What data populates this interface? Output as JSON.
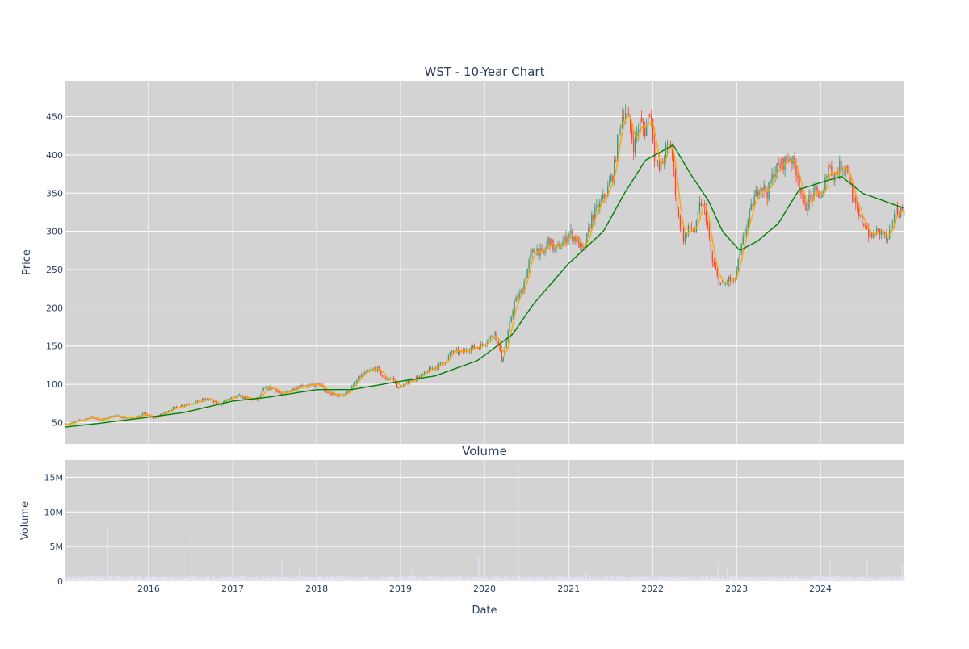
{
  "chart_data": [
    {
      "type": "candlestick",
      "title": "WST - 10-Year Chart",
      "xlabel": "",
      "ylabel": "Price",
      "x_range": [
        "2015-01-01",
        "2024-12-31"
      ],
      "ylim": [
        22,
        497
      ],
      "y_ticks": [
        50,
        100,
        150,
        200,
        250,
        300,
        350,
        400,
        450
      ],
      "grid": true,
      "background": "#d3d3d3",
      "colors": {
        "increasing": "#3d9970",
        "decreasing": "#ff4136",
        "ma_fast": "#ffa500",
        "ma_slow": "#008000"
      },
      "price_path": [
        [
          "2015-01-01",
          49
        ],
        [
          "2015-01-20",
          48
        ],
        [
          "2015-03-01",
          52
        ],
        [
          "2015-05-01",
          57
        ],
        [
          "2015-06-15",
          53
        ],
        [
          "2015-08-01",
          59
        ],
        [
          "2015-09-15",
          57
        ],
        [
          "2015-11-01",
          55
        ],
        [
          "2015-12-15",
          62
        ],
        [
          "2016-01-20",
          56
        ],
        [
          "2016-02-15",
          58
        ],
        [
          "2016-04-01",
          66
        ],
        [
          "2016-06-01",
          73
        ],
        [
          "2016-08-01",
          77
        ],
        [
          "2016-09-20",
          81
        ],
        [
          "2016-11-05",
          73
        ],
        [
          "2016-12-15",
          80
        ],
        [
          "2017-02-01",
          85
        ],
        [
          "2017-03-15",
          81
        ],
        [
          "2017-04-25",
          80
        ],
        [
          "2017-05-20",
          94
        ],
        [
          "2017-07-01",
          96
        ],
        [
          "2017-08-05",
          86
        ],
        [
          "2017-09-15",
          93
        ],
        [
          "2017-11-01",
          99
        ],
        [
          "2017-12-15",
          98
        ],
        [
          "2018-01-20",
          100
        ],
        [
          "2018-02-10",
          90
        ],
        [
          "2018-03-15",
          87
        ],
        [
          "2018-04-15",
          85
        ],
        [
          "2018-05-20",
          90
        ],
        [
          "2018-06-15",
          99
        ],
        [
          "2018-07-15",
          112
        ],
        [
          "2018-08-20",
          117
        ],
        [
          "2018-09-25",
          121
        ],
        [
          "2018-10-25",
          107
        ],
        [
          "2018-12-01",
          108
        ],
        [
          "2018-12-25",
          94
        ],
        [
          "2019-02-01",
          103
        ],
        [
          "2019-03-15",
          108
        ],
        [
          "2019-04-10",
          112
        ],
        [
          "2019-05-15",
          120
        ],
        [
          "2019-06-20",
          125
        ],
        [
          "2019-07-25",
          132
        ],
        [
          "2019-08-15",
          143
        ],
        [
          "2019-10-01",
          142
        ],
        [
          "2019-11-01",
          147
        ],
        [
          "2019-12-15",
          150
        ],
        [
          "2020-01-20",
          158
        ],
        [
          "2020-02-20",
          168
        ],
        [
          "2020-03-20",
          130
        ],
        [
          "2020-04-15",
          165
        ],
        [
          "2020-05-10",
          205
        ],
        [
          "2020-06-15",
          222
        ],
        [
          "2020-07-10",
          252
        ],
        [
          "2020-07-25",
          270
        ],
        [
          "2020-08-20",
          277
        ],
        [
          "2020-09-15",
          268
        ],
        [
          "2020-10-10",
          290
        ],
        [
          "2020-11-05",
          275
        ],
        [
          "2020-12-01",
          282
        ],
        [
          "2021-01-10",
          298
        ],
        [
          "2021-02-10",
          288
        ],
        [
          "2021-03-10",
          272
        ],
        [
          "2021-04-15",
          318
        ],
        [
          "2021-05-20",
          335
        ],
        [
          "2021-06-20",
          352
        ],
        [
          "2021-07-20",
          380
        ],
        [
          "2021-08-15",
          440
        ],
        [
          "2021-09-05",
          462
        ],
        [
          "2021-09-25",
          440
        ],
        [
          "2021-10-15",
          412
        ],
        [
          "2021-11-10",
          445
        ],
        [
          "2021-12-01",
          430
        ],
        [
          "2021-12-25",
          462
        ],
        [
          "2022-01-15",
          395
        ],
        [
          "2022-02-05",
          378
        ],
        [
          "2022-03-01",
          405
        ],
        [
          "2022-03-25",
          415
        ],
        [
          "2022-04-25",
          320
        ],
        [
          "2022-05-20",
          290
        ],
        [
          "2022-06-15",
          305
        ],
        [
          "2022-07-10",
          300
        ],
        [
          "2022-08-01",
          340
        ],
        [
          "2022-08-25",
          320
        ],
        [
          "2022-09-20",
          260
        ],
        [
          "2022-10-15",
          238
        ],
        [
          "2022-11-05",
          228
        ],
        [
          "2022-12-01",
          237
        ],
        [
          "2022-12-25",
          233
        ],
        [
          "2023-02-10",
          300
        ],
        [
          "2023-03-20",
          340
        ],
        [
          "2023-04-15",
          362
        ],
        [
          "2023-05-20",
          350
        ],
        [
          "2023-06-15",
          378
        ],
        [
          "2023-07-20",
          388
        ],
        [
          "2023-08-25",
          398
        ],
        [
          "2023-09-25",
          378
        ],
        [
          "2023-10-25",
          330
        ],
        [
          "2023-11-25",
          345
        ],
        [
          "2023-12-20",
          352
        ],
        [
          "2024-01-15",
          342
        ],
        [
          "2024-02-05",
          390
        ],
        [
          "2024-03-01",
          372
        ],
        [
          "2024-04-05",
          387
        ],
        [
          "2024-05-01",
          383
        ],
        [
          "2024-05-25",
          342
        ],
        [
          "2024-06-20",
          318
        ],
        [
          "2024-07-20",
          308
        ],
        [
          "2024-08-10",
          290
        ],
        [
          "2024-09-01",
          300
        ],
        [
          "2024-10-01",
          298
        ],
        [
          "2024-10-25",
          286
        ],
        [
          "2024-11-20",
          325
        ],
        [
          "2024-12-31",
          328
        ]
      ],
      "ma_slow_path": [
        [
          "2015-01-01",
          44
        ],
        [
          "2015-06-01",
          49
        ],
        [
          "2016-01-01",
          57
        ],
        [
          "2016-06-01",
          63
        ],
        [
          "2017-01-01",
          78
        ],
        [
          "2017-06-01",
          83
        ],
        [
          "2018-01-01",
          93
        ],
        [
          "2018-06-01",
          93
        ],
        [
          "2019-01-01",
          104
        ],
        [
          "2019-06-01",
          111
        ],
        [
          "2019-12-01",
          131
        ],
        [
          "2020-05-01",
          165
        ],
        [
          "2020-08-01",
          205
        ],
        [
          "2021-01-01",
          258
        ],
        [
          "2021-06-01",
          300
        ],
        [
          "2021-09-01",
          350
        ],
        [
          "2021-12-01",
          393
        ],
        [
          "2022-04-01",
          413
        ],
        [
          "2022-06-15",
          375
        ],
        [
          "2022-09-01",
          340
        ],
        [
          "2022-11-01",
          300
        ],
        [
          "2023-01-15",
          275
        ],
        [
          "2023-04-01",
          287
        ],
        [
          "2023-07-01",
          310
        ],
        [
          "2023-10-01",
          355
        ],
        [
          "2024-01-15",
          365
        ],
        [
          "2024-04-01",
          372
        ],
        [
          "2024-07-01",
          350
        ],
        [
          "2024-10-01",
          340
        ],
        [
          "2024-12-31",
          330
        ]
      ]
    },
    {
      "type": "bar",
      "title": "Volume",
      "xlabel": "Date",
      "ylabel": "Volume",
      "x_range": [
        "2015-01-01",
        "2024-12-31"
      ],
      "ylim": [
        0,
        17500000
      ],
      "y_ticks": [
        0,
        5000000,
        10000000,
        15000000
      ],
      "y_tick_labels": [
        "0",
        "5M",
        "10M",
        "15M"
      ],
      "x_ticks": [
        "2016",
        "2017",
        "2018",
        "2019",
        "2020",
        "2021",
        "2022",
        "2023",
        "2024"
      ],
      "grid": true,
      "background": "#d3d3d3",
      "color": "#e4e4f5",
      "baseline_volume": 500000,
      "spikes": [
        [
          "2015-07-05",
          7900000
        ],
        [
          "2016-07-01",
          6100000
        ],
        [
          "2017-08-01",
          2900000
        ],
        [
          "2017-10-15",
          1900000
        ],
        [
          "2019-02-20",
          1700000
        ],
        [
          "2019-12-05",
          3400000
        ],
        [
          "2020-05-25",
          17000000
        ],
        [
          "2021-03-15",
          1200000
        ],
        [
          "2022-10-10",
          2200000
        ],
        [
          "2022-11-20",
          1700000
        ],
        [
          "2024-02-10",
          3000000
        ],
        [
          "2024-07-20",
          3300000
        ],
        [
          "2024-12-20",
          2300000
        ]
      ]
    }
  ]
}
